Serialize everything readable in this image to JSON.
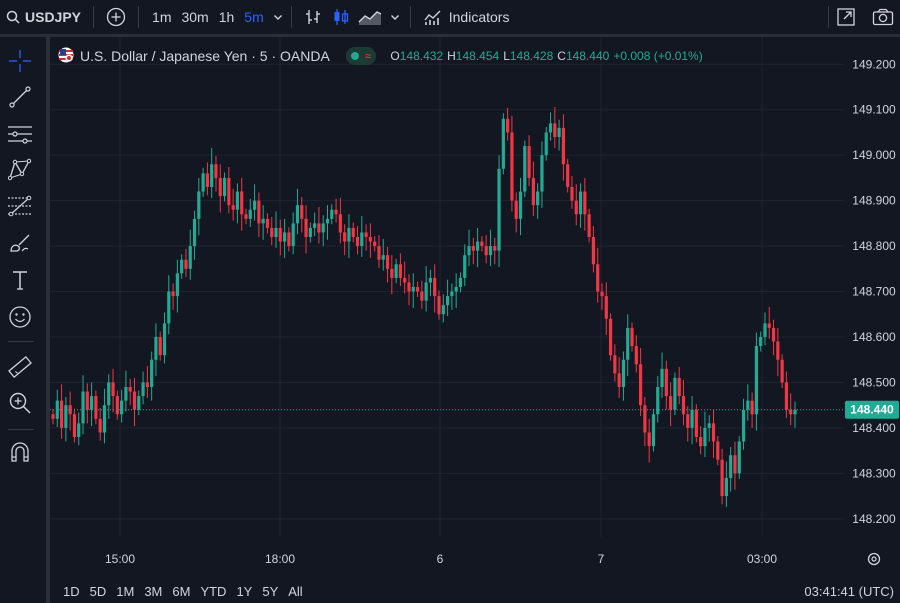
{
  "toolbar": {
    "symbol": "USDJPY",
    "timeframes": [
      "1m",
      "30m",
      "1h",
      "5m"
    ],
    "active_timeframe": "5m",
    "indicators_label": "Indicators"
  },
  "legend": {
    "title": "U.S. Dollar / Japanese Yen · 5 · OANDA",
    "o_label": "O",
    "o": "148.432",
    "h_label": "H",
    "h": "148.454",
    "l_label": "L",
    "l": "148.428",
    "c_label": "C",
    "c": "148.440",
    "change": "+0.008 (+0.01%)"
  },
  "bottom": {
    "ranges": [
      "1D",
      "5D",
      "1M",
      "3M",
      "6M",
      "YTD",
      "1Y",
      "5Y",
      "All"
    ],
    "clock": "03:41:41 (UTC)"
  },
  "colors": {
    "up": "#22ab94",
    "down": "#f23645",
    "accent": "#2962ff",
    "bg": "#131722"
  },
  "chart_data": {
    "type": "candlestick",
    "y_ticks": [
      "149.200",
      "149.100",
      "149.000",
      "148.900",
      "148.800",
      "148.700",
      "148.600",
      "148.500",
      "148.400",
      "148.300",
      "148.200"
    ],
    "ylim": [
      148.16,
      149.26
    ],
    "x_ticks": [
      "15:00",
      "18:00",
      "6",
      "7",
      "03:00"
    ],
    "last_price": "148.440",
    "close_series": [
      148.42,
      148.46,
      148.4,
      148.45,
      148.43,
      148.38,
      148.41,
      148.48,
      148.44,
      148.47,
      148.42,
      148.39,
      148.45,
      148.5,
      148.47,
      148.43,
      148.46,
      148.49,
      148.48,
      148.44,
      148.47,
      148.5,
      148.49,
      148.55,
      148.6,
      148.56,
      148.63,
      148.7,
      148.69,
      148.74,
      148.77,
      148.75,
      148.8,
      148.86,
      148.92,
      148.96,
      148.93,
      148.98,
      148.95,
      148.91,
      148.95,
      148.89,
      148.88,
      148.92,
      148.87,
      148.86,
      148.88,
      148.9,
      148.85,
      148.86,
      148.84,
      148.82,
      148.84,
      148.81,
      148.83,
      148.8,
      148.85,
      148.89,
      148.86,
      148.82,
      148.84,
      148.85,
      148.83,
      148.85,
      148.86,
      148.88,
      148.87,
      148.83,
      148.81,
      148.84,
      148.82,
      148.8,
      148.83,
      148.82,
      148.81,
      148.8,
      148.77,
      148.78,
      148.75,
      148.73,
      148.76,
      148.73,
      148.72,
      148.7,
      148.71,
      148.7,
      148.68,
      148.72,
      148.73,
      148.69,
      148.65,
      148.67,
      148.69,
      148.7,
      148.71,
      148.73,
      148.78,
      148.8,
      148.79,
      148.81,
      148.8,
      148.78,
      148.8,
      148.79,
      148.97,
      149.08,
      149.05,
      148.9,
      148.86,
      148.92,
      149.02,
      148.95,
      148.89,
      148.92,
      149.0,
      149.05,
      149.07,
      149.04,
      149.06,
      148.98,
      148.93,
      148.9,
      148.87,
      148.92,
      148.87,
      148.82,
      148.76,
      148.7,
      148.69,
      148.64,
      148.56,
      148.52,
      148.49,
      148.55,
      148.62,
      148.58,
      148.54,
      148.45,
      148.39,
      148.36,
      148.43,
      148.49,
      148.53,
      148.47,
      148.44,
      148.51,
      148.47,
      148.43,
      148.4,
      148.44,
      148.38,
      148.36,
      148.4,
      148.41,
      148.37,
      148.33,
      148.25,
      148.29,
      148.34,
      148.3,
      148.37,
      148.44,
      148.46,
      148.43,
      148.58,
      148.6,
      148.63,
      148.62,
      148.59,
      148.55,
      148.5,
      148.44,
      148.43,
      148.44
    ]
  }
}
